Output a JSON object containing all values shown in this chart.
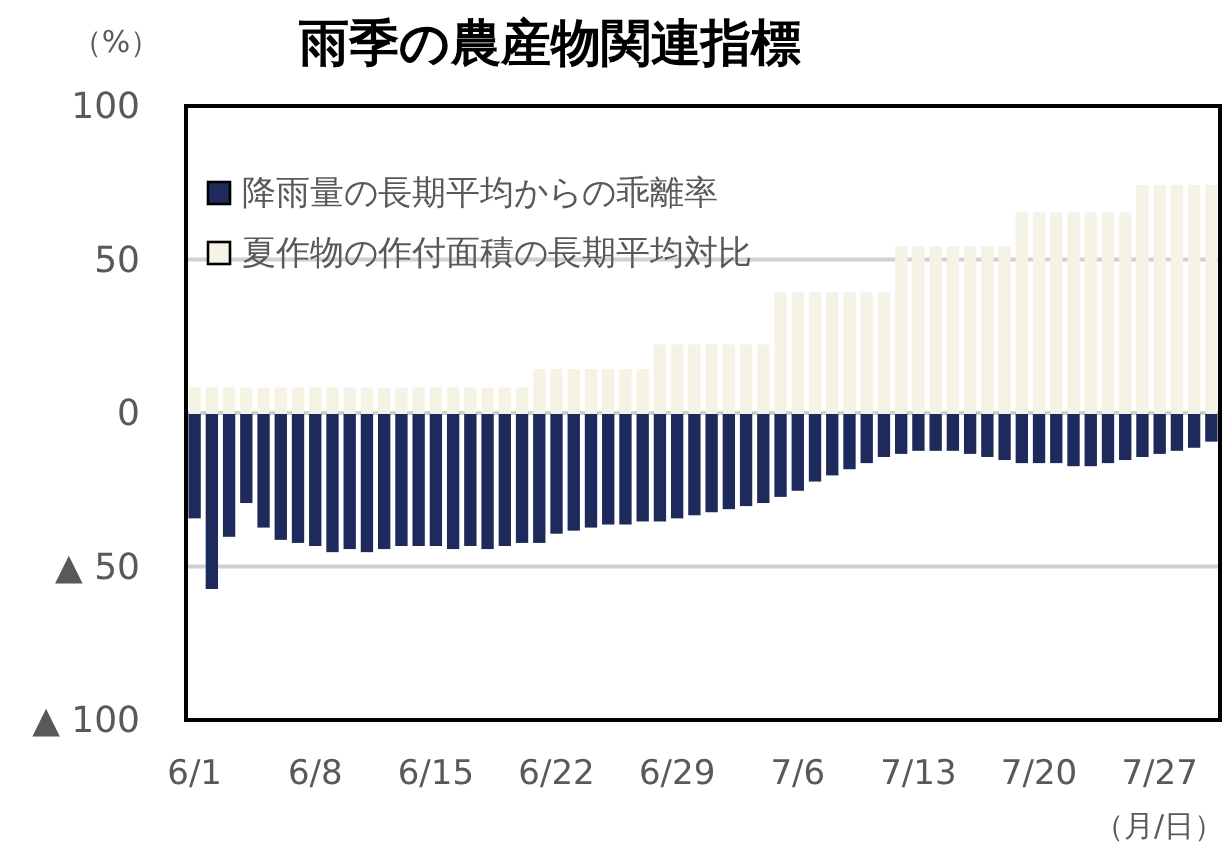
{
  "chart_data": {
    "type": "bar",
    "title": "雨季の農産物関連指標",
    "ylabel": "（%）",
    "xlabel": "（月/日）",
    "categories": [
      "6/1",
      null,
      null,
      null,
      null,
      null,
      null,
      "6/8",
      null,
      null,
      null,
      null,
      null,
      null,
      "6/15",
      null,
      null,
      null,
      null,
      null,
      null,
      "6/22",
      null,
      null,
      null,
      null,
      null,
      null,
      "6/29",
      null,
      null,
      null,
      null,
      null,
      null,
      "7/6",
      null,
      null,
      null,
      null,
      null,
      null,
      "7/13",
      null,
      null,
      null,
      null,
      null,
      null,
      "7/20",
      null,
      null,
      null,
      null,
      null,
      null,
      "7/27",
      null,
      null,
      null
    ],
    "series": [
      {
        "name": "降雨量の長期平均からの乖離率",
        "color": "#1f2a5c",
        "values": [
          -34,
          -57,
          -40,
          -29,
          -37,
          -41,
          -42,
          -43,
          -45,
          -44,
          -45,
          -44,
          -43,
          -43,
          -43,
          -44,
          -43,
          -44,
          -43,
          -42,
          -42,
          -39,
          -38,
          -37,
          -36,
          -36,
          -35,
          -35,
          -34,
          -33,
          -32,
          -31,
          -30,
          -29,
          -27,
          -25,
          -22,
          -20,
          -18,
          -16,
          -14,
          -13,
          -12,
          -12,
          -12,
          -13,
          -14,
          -15,
          -16,
          -16,
          -16,
          -17,
          -17,
          -16,
          -15,
          -14,
          -13,
          -12,
          -11,
          -9
        ]
      },
      {
        "name": "夏作物の作付面積の長期平均対比",
        "color": "#f5f2e6",
        "values": [
          8,
          8,
          8,
          8,
          8,
          8,
          8,
          8,
          8,
          8,
          8,
          8,
          8,
          8,
          8,
          8,
          8,
          8,
          8,
          8,
          14,
          14,
          14,
          14,
          14,
          14,
          14,
          22,
          22,
          22,
          22,
          22,
          22,
          22,
          39,
          39,
          39,
          39,
          39,
          39,
          39,
          54,
          54,
          54,
          54,
          54,
          54,
          54,
          65,
          65,
          65,
          65,
          65,
          65,
          65,
          74,
          74,
          74,
          74,
          74
        ]
      }
    ],
    "ylim": [
      -100,
      100
    ],
    "yticks": [
      {
        "value": -100,
        "label": "▲ 100"
      },
      {
        "value": -50,
        "label": "▲ 50"
      },
      0,
      50,
      100
    ],
    "stacked": true,
    "grid": "y",
    "legend": "top left"
  }
}
